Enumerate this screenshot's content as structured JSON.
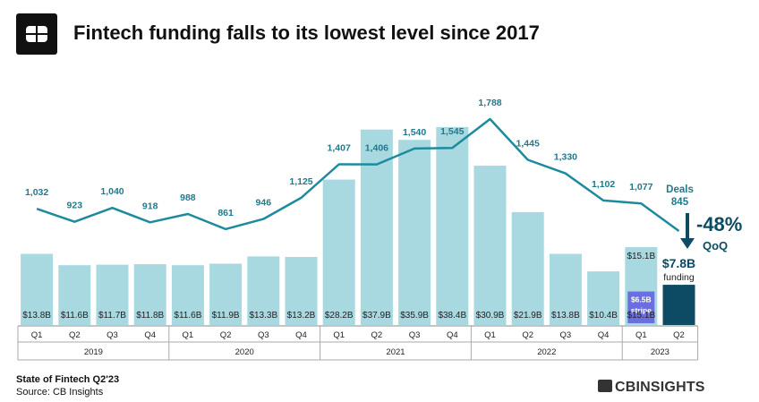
{
  "header": {
    "title": "Fintech funding falls to its lowest level since 2017",
    "logo": "cb-insights-logo-icon"
  },
  "footer": {
    "report": "State of Fintech Q2'23",
    "source": "Source: CB Insights",
    "brand": "CBINSIGHTS"
  },
  "colors": {
    "bar": "#a8d8e0",
    "bar_latest": "#0d4a63",
    "stripe_bar": "#6b6ee0",
    "line": "#1f8a9e",
    "line_label": "#1f7a8c",
    "axis_text": "#222222"
  },
  "chart_data": {
    "type": "bar",
    "categories": [
      "Q1",
      "Q2",
      "Q3",
      "Q4",
      "Q1",
      "Q2",
      "Q3",
      "Q4",
      "Q1",
      "Q2",
      "Q3",
      "Q4",
      "Q1",
      "Q2",
      "Q3",
      "Q4",
      "Q1",
      "Q2"
    ],
    "years": [
      {
        "label": "2019",
        "count": 4
      },
      {
        "label": "2020",
        "count": 4
      },
      {
        "label": "2021",
        "count": 4
      },
      {
        "label": "2022",
        "count": 4
      },
      {
        "label": "2023",
        "count": 2
      }
    ],
    "series": [
      {
        "kind": "bar",
        "values": [
          13.8,
          11.6,
          11.7,
          11.8,
          11.6,
          11.9,
          13.3,
          13.2,
          28.2,
          37.9,
          35.9,
          38.4,
          30.9,
          21.9,
          13.8,
          10.4,
          15.1,
          7.8
        ],
        "labels": [
          "$13.8B",
          "$11.6B",
          "$11.7B",
          "$11.8B",
          "$11.6B",
          "$11.9B",
          "$13.3B",
          "$13.2B",
          "$28.2B",
          "$37.9B",
          "$35.9B",
          "$38.4B",
          "$30.9B",
          "$21.9B",
          "$13.8B",
          "$10.4B",
          "$15.1B",
          "$7.8B"
        ]
      },
      {
        "name": "Deals",
        "kind": "line",
        "values": [
          1032,
          923,
          1040,
          918,
          988,
          861,
          946,
          1125,
          1407,
          1406,
          1540,
          1545,
          1788,
          1445,
          1330,
          1102,
          1077,
          845
        ],
        "labels": [
          "1,032",
          "923",
          "1,040",
          "918",
          "988",
          "861",
          "946",
          "1,125",
          "1,407",
          "1,406",
          "1,540",
          "1,545",
          "1,788",
          "1,445",
          "1,330",
          "1,102",
          "1,077",
          "845"
        ]
      }
    ],
    "stripe_segment": {
      "value": 6.5,
      "label": "$6.5B",
      "sublabel": "stripe",
      "quarter": "Q1 2023"
    },
    "annotations": {
      "change": "-48%",
      "change_sub": "QoQ",
      "latest_funding": "$7.8B",
      "latest_funding_sub": "funding"
    },
    "bar_ylim": [
      0,
      40
    ],
    "line_ylim": [
      0,
      2000
    ]
  }
}
